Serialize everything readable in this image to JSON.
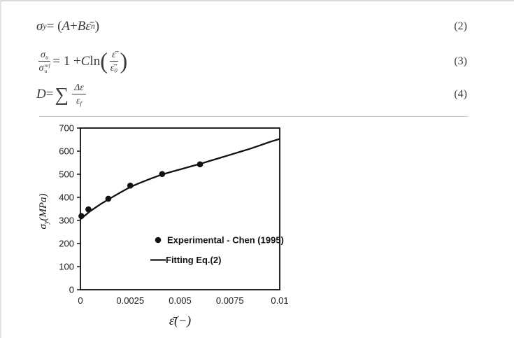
{
  "page": {
    "background": "#ffffff",
    "border_color": "#dadada",
    "separator_color": "#c9c9c9",
    "text_color": "#3b3b3b"
  },
  "equations": [
    {
      "name": "johnson-cook-hardening",
      "number": "(2)",
      "tokens": [
        {
          "t": "σ",
          "s": "var"
        },
        {
          "t": "y",
          "s": "sub"
        },
        {
          "t": " = (",
          "s": "rm"
        },
        {
          "t": "A",
          "s": "var"
        },
        {
          "t": " + ",
          "s": "rm"
        },
        {
          "t": "B",
          "s": "var"
        },
        {
          "t": "ε̄",
          "s": "var"
        },
        {
          "t": "n",
          "s": "sup"
        },
        {
          "t": ")",
          "s": "rm"
        }
      ]
    },
    {
      "name": "strain-rate-term",
      "number": "(3)",
      "tokens": [
        {
          "frac": {
            "num": [
              {
                "t": "σ",
                "s": "var"
              },
              {
                "t": "u",
                "s": "sub"
              }
            ],
            "den": [
              {
                "t": "σ",
                "s": "var"
              },
              {
                "supsub": {
                  "sup": "ref",
                  "sub": "u"
                }
              }
            ]
          }
        },
        {
          "t": " = 1 + ",
          "s": "rm"
        },
        {
          "t": "C",
          "s": "var"
        },
        {
          "t": "ln",
          "s": "rm"
        },
        {
          "big": "("
        },
        {
          "frac": {
            "num": [
              {
                "t": "ε̄̇",
                "s": "var"
              }
            ],
            "den": [
              {
                "t": "ε̄̇",
                "s": "var"
              },
              {
                "t": "0",
                "s": "sub"
              }
            ]
          }
        },
        {
          "big": ")"
        }
      ]
    },
    {
      "name": "damage-accumulation",
      "number": "(4)",
      "tokens": [
        {
          "t": "D",
          "s": "var"
        },
        {
          "t": " = ",
          "s": "rm"
        },
        {
          "t": "∑",
          "s": "sum"
        },
        {
          "frac": {
            "num": [
              {
                "t": "Δε",
                "s": "var"
              }
            ],
            "den": [
              {
                "t": "ε",
                "s": "var"
              },
              {
                "t": "f",
                "s": "sub"
              }
            ]
          }
        }
      ]
    }
  ],
  "chart_data": {
    "type": "scatter",
    "title": "",
    "xlabel_base": "ε̄",
    "xlabel_unit": "(−)",
    "ylabel_base": "σ",
    "ylabel_sub": "y",
    "ylabel_unit": "(MPa)",
    "xlim": [
      0,
      0.01
    ],
    "ylim": [
      0,
      700
    ],
    "x_ticks": [
      0,
      0.0025,
      0.005,
      0.0075,
      0.01
    ],
    "x_tick_labels": [
      "0",
      "0.0025",
      "0.005",
      "0.0075",
      "0.01"
    ],
    "y_ticks": [
      0,
      100,
      200,
      300,
      400,
      500,
      600,
      700
    ],
    "y_tick_labels": [
      "0",
      "100",
      "200",
      "300",
      "400",
      "500",
      "600",
      "700"
    ],
    "grid": false,
    "legend_position": "inside-center-left",
    "axis_color": "#000000",
    "series": [
      {
        "name": "Experimental - Chen (1995)",
        "type": "scatter",
        "marker": "circle",
        "color": "#111111",
        "points": [
          [
            5e-05,
            319
          ],
          [
            0.0004,
            348
          ],
          [
            0.0014,
            394
          ],
          [
            0.0025,
            451
          ],
          [
            0.0041,
            501
          ],
          [
            0.006,
            543
          ]
        ]
      },
      {
        "name": "Fitting Eq.(2)",
        "type": "line",
        "color": "#111111",
        "points": [
          [
            0,
            305
          ],
          [
            0.0005,
            341
          ],
          [
            0.001,
            370
          ],
          [
            0.0015,
            396
          ],
          [
            0.002,
            421
          ],
          [
            0.0025,
            445
          ],
          [
            0.003,
            463
          ],
          [
            0.0035,
            480
          ],
          [
            0.004,
            496
          ],
          [
            0.0045,
            509
          ],
          [
            0.005,
            521
          ],
          [
            0.0055,
            533
          ],
          [
            0.006,
            545
          ],
          [
            0.0065,
            558
          ],
          [
            0.007,
            571
          ],
          [
            0.0075,
            584
          ],
          [
            0.008,
            597
          ],
          [
            0.0085,
            610
          ],
          [
            0.009,
            625
          ],
          [
            0.0095,
            640
          ],
          [
            0.01,
            653
          ]
        ]
      }
    ]
  }
}
